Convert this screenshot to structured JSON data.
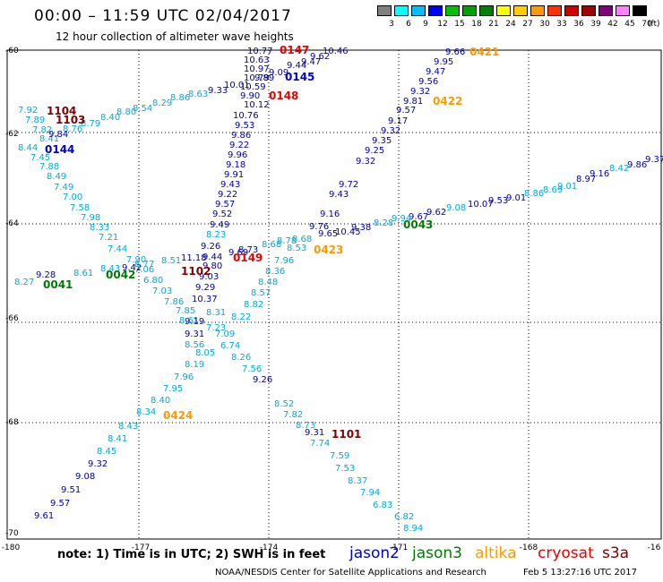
{
  "title": "00:00 – 11:59 UTC 02/04/2017",
  "subtitle": "12 hour collection of altimeter wave heights",
  "scale": {
    "labels": [
      "3",
      "6",
      "9",
      "12",
      "15",
      "18",
      "21",
      "24",
      "27",
      "30",
      "33",
      "36",
      "39",
      "42",
      "45",
      "70"
    ],
    "unit": "(ft)",
    "colors": [
      "#808080",
      "#00ffff",
      "#00bfff",
      "#0000ff",
      "#00c000",
      "#00a000",
      "#008000",
      "#ffff00",
      "#ffcc00",
      "#ff9900",
      "#ff3300",
      "#d00000",
      "#a00000",
      "#800080",
      "#ff80ff",
      "#000000"
    ]
  },
  "map": {
    "lon_ticks": [
      "-180",
      "-177",
      "-174",
      "-171",
      "-168",
      "-16"
    ],
    "lat_ticks": [
      "-60",
      "-62",
      "-64",
      "-66",
      "-68",
      "-70"
    ],
    "colors": {
      "jason2": "#0000cc",
      "jason3": "#007a00",
      "altika": "#ff9900",
      "cryosat": "#ee0000",
      "s3a": "#800000",
      "obs_light": "#00aadd",
      "obs_dark": "#0000aa"
    },
    "pass_labels": [
      {
        "text": "0147",
        "color": "cryosat"
      },
      {
        "text": "0145",
        "color": "jason2"
      },
      {
        "text": "0148",
        "color": "cryosat"
      },
      {
        "text": "0421",
        "color": "altika"
      },
      {
        "text": "0422",
        "color": "altika"
      },
      {
        "text": "1104",
        "color": "s3a"
      },
      {
        "text": "1103",
        "color": "s3a"
      },
      {
        "text": "0144",
        "color": "jason2"
      },
      {
        "text": "0043",
        "color": "jason3"
      },
      {
        "text": "0423",
        "color": "altika"
      },
      {
        "text": "0149",
        "color": "cryosat"
      },
      {
        "text": "0042",
        "color": "jason3"
      },
      {
        "text": "1102",
        "color": "s3a"
      },
      {
        "text": "0041",
        "color": "jason3"
      },
      {
        "text": "0424",
        "color": "altika"
      },
      {
        "text": "1101",
        "color": "s3a"
      }
    ],
    "observations": [
      {
        "t": "10.77",
        "c": "obs_dark"
      },
      {
        "t": "10.46",
        "c": "obs_dark"
      },
      {
        "t": "10.63",
        "c": "obs_dark"
      },
      {
        "t": "9.62",
        "c": "obs_dark"
      },
      {
        "t": "9.47",
        "c": "obs_dark"
      },
      {
        "t": "10.97",
        "c": "obs_dark"
      },
      {
        "t": "9.44",
        "c": "obs_dark"
      },
      {
        "t": "9.09",
        "c": "obs_dark"
      },
      {
        "t": "10.79",
        "c": "obs_dark"
      },
      {
        "t": "9.89",
        "c": "obs_dark"
      },
      {
        "t": "10.01",
        "c": "obs_dark"
      },
      {
        "t": "9.33",
        "c": "obs_dark"
      },
      {
        "t": "10.59",
        "c": "obs_dark"
      },
      {
        "t": "9.90",
        "c": "obs_dark"
      },
      {
        "t": "10.12",
        "c": "obs_dark"
      },
      {
        "t": "10.76",
        "c": "obs_dark"
      },
      {
        "t": "9.53",
        "c": "obs_dark"
      },
      {
        "t": "9.86",
        "c": "obs_dark"
      },
      {
        "t": "9.22",
        "c": "obs_dark"
      },
      {
        "t": "9.96",
        "c": "obs_dark"
      },
      {
        "t": "9.18",
        "c": "obs_dark"
      },
      {
        "t": "9.91",
        "c": "obs_dark"
      },
      {
        "t": "9.43",
        "c": "obs_dark"
      },
      {
        "t": "9.22",
        "c": "obs_dark"
      },
      {
        "t": "9.57",
        "c": "obs_dark"
      },
      {
        "t": "9.52",
        "c": "obs_dark"
      },
      {
        "t": "9.49",
        "c": "obs_dark"
      },
      {
        "t": "9.66",
        "c": "obs_dark"
      },
      {
        "t": "9.95",
        "c": "obs_dark"
      },
      {
        "t": "9.47",
        "c": "obs_dark"
      },
      {
        "t": "9.56",
        "c": "obs_dark"
      },
      {
        "t": "9.32",
        "c": "obs_dark"
      },
      {
        "t": "9.81",
        "c": "obs_dark"
      },
      {
        "t": "9.57",
        "c": "obs_dark"
      },
      {
        "t": "9.17",
        "c": "obs_dark"
      },
      {
        "t": "9.32",
        "c": "obs_dark"
      },
      {
        "t": "9.35",
        "c": "obs_dark"
      },
      {
        "t": "9.25",
        "c": "obs_dark"
      },
      {
        "t": "9.32",
        "c": "obs_dark"
      },
      {
        "t": "9.72",
        "c": "obs_dark"
      },
      {
        "t": "9.43",
        "c": "obs_dark"
      },
      {
        "t": "9.16",
        "c": "obs_dark"
      },
      {
        "t": "9.76",
        "c": "obs_dark"
      },
      {
        "t": "9.65",
        "c": "obs_dark"
      },
      {
        "t": "10.45",
        "c": "obs_dark"
      },
      {
        "t": "9.38",
        "c": "obs_dark"
      },
      {
        "t": "9.86",
        "c": "obs_dark"
      },
      {
        "t": "9.37",
        "c": "obs_dark"
      },
      {
        "t": "8.42",
        "c": "obs_light"
      },
      {
        "t": "9.16",
        "c": "obs_dark"
      },
      {
        "t": "8.97",
        "c": "obs_dark"
      },
      {
        "t": "9.01",
        "c": "obs_light"
      },
      {
        "t": "8.69",
        "c": "obs_light"
      },
      {
        "t": "8.86",
        "c": "obs_light"
      },
      {
        "t": "9.01",
        "c": "obs_dark"
      },
      {
        "t": "9.53",
        "c": "obs_dark"
      },
      {
        "t": "10.07",
        "c": "obs_dark"
      },
      {
        "t": "9.08",
        "c": "obs_light"
      },
      {
        "t": "9.62",
        "c": "obs_dark"
      },
      {
        "t": "9.67",
        "c": "obs_dark"
      },
      {
        "t": "9.94",
        "c": "obs_light"
      },
      {
        "t": "8.28",
        "c": "obs_light"
      },
      {
        "t": "7.92",
        "c": "obs_light"
      },
      {
        "t": "7.89",
        "c": "obs_light"
      },
      {
        "t": "7.82",
        "c": "obs_light"
      },
      {
        "t": "8.41",
        "c": "obs_light"
      },
      {
        "t": "8.44",
        "c": "obs_light"
      },
      {
        "t": "7.45",
        "c": "obs_light"
      },
      {
        "t": "7.88",
        "c": "obs_light"
      },
      {
        "t": "8.49",
        "c": "obs_light"
      },
      {
        "t": "7.49",
        "c": "obs_light"
      },
      {
        "t": "7.00",
        "c": "obs_light"
      },
      {
        "t": "7.58",
        "c": "obs_light"
      },
      {
        "t": "7.98",
        "c": "obs_light"
      },
      {
        "t": "8.33",
        "c": "obs_light"
      },
      {
        "t": "7.21",
        "c": "obs_light"
      },
      {
        "t": "7.44",
        "c": "obs_light"
      },
      {
        "t": "7.90",
        "c": "obs_light"
      },
      {
        "t": "7.06",
        "c": "obs_light"
      },
      {
        "t": "6.80",
        "c": "obs_light"
      },
      {
        "t": "7.03",
        "c": "obs_light"
      },
      {
        "t": "7.86",
        "c": "obs_light"
      },
      {
        "t": "7.85",
        "c": "obs_light"
      },
      {
        "t": "8.61",
        "c": "obs_light"
      },
      {
        "t": "8.76",
        "c": "obs_light"
      },
      {
        "t": "8.79",
        "c": "obs_light"
      },
      {
        "t": "8.40",
        "c": "obs_light"
      },
      {
        "t": "8.80",
        "c": "obs_light"
      },
      {
        "t": "8.54",
        "c": "obs_light"
      },
      {
        "t": "8.29",
        "c": "obs_light"
      },
      {
        "t": "8.86",
        "c": "obs_light"
      },
      {
        "t": "8.63",
        "c": "obs_light"
      },
      {
        "t": "9.84",
        "c": "obs_dark"
      },
      {
        "t": "8.27",
        "c": "obs_light"
      },
      {
        "t": "9.28",
        "c": "obs_dark"
      },
      {
        "t": "8.61",
        "c": "obs_light"
      },
      {
        "t": "8.43",
        "c": "obs_light"
      },
      {
        "t": "9.42",
        "c": "obs_dark"
      },
      {
        "t": "8.77",
        "c": "obs_light"
      },
      {
        "t": "8.51",
        "c": "obs_light"
      },
      {
        "t": "11.18",
        "c": "obs_dark"
      },
      {
        "t": "9.26",
        "c": "obs_dark"
      },
      {
        "t": "9.44",
        "c": "obs_dark"
      },
      {
        "t": "9.69",
        "c": "obs_dark"
      },
      {
        "t": "8.73",
        "c": "obs_dark"
      },
      {
        "t": "9.80",
        "c": "obs_dark"
      },
      {
        "t": "9.03",
        "c": "obs_dark"
      },
      {
        "t": "9.29",
        "c": "obs_dark"
      },
      {
        "t": "10.37",
        "c": "obs_dark"
      },
      {
        "t": "9.19",
        "c": "obs_dark"
      },
      {
        "t": "9.31",
        "c": "obs_dark"
      },
      {
        "t": "8.56",
        "c": "obs_light"
      },
      {
        "t": "8.23",
        "c": "obs_light"
      },
      {
        "t": "8.68",
        "c": "obs_light"
      },
      {
        "t": "8.78",
        "c": "obs_light"
      },
      {
        "t": "8.68",
        "c": "obs_light"
      },
      {
        "t": "8.53",
        "c": "obs_light"
      },
      {
        "t": "7.96",
        "c": "obs_light"
      },
      {
        "t": "8.36",
        "c": "obs_light"
      },
      {
        "t": "8.48",
        "c": "obs_light"
      },
      {
        "t": "8.57",
        "c": "obs_light"
      },
      {
        "t": "8.82",
        "c": "obs_light"
      },
      {
        "t": "8.22",
        "c": "obs_light"
      },
      {
        "t": "7.23",
        "c": "obs_light"
      },
      {
        "t": "7.09",
        "c": "obs_light"
      },
      {
        "t": "6.74",
        "c": "obs_light"
      },
      {
        "t": "8.26",
        "c": "obs_light"
      },
      {
        "t": "7.56",
        "c": "obs_light"
      },
      {
        "t": "9.26",
        "c": "obs_dark"
      },
      {
        "t": "8.52",
        "c": "obs_light"
      },
      {
        "t": "7.82",
        "c": "obs_light"
      },
      {
        "t": "8.73",
        "c": "obs_light"
      },
      {
        "t": "9.31",
        "c": "obs_dark"
      },
      {
        "t": "7.74",
        "c": "obs_light"
      },
      {
        "t": "7.59",
        "c": "obs_light"
      },
      {
        "t": "7.53",
        "c": "obs_light"
      },
      {
        "t": "8.37",
        "c": "obs_light"
      },
      {
        "t": "7.94",
        "c": "obs_light"
      },
      {
        "t": "6.83",
        "c": "obs_light"
      },
      {
        "t": "6.82",
        "c": "obs_light"
      },
      {
        "t": "8.94",
        "c": "obs_light"
      },
      {
        "t": "8.31",
        "c": "obs_light"
      },
      {
        "t": "8.05",
        "c": "obs_light"
      },
      {
        "t": "8.19",
        "c": "obs_light"
      },
      {
        "t": "7.96",
        "c": "obs_light"
      },
      {
        "t": "7.95",
        "c": "obs_light"
      },
      {
        "t": "8.40",
        "c": "obs_light"
      },
      {
        "t": "8.34",
        "c": "obs_light"
      },
      {
        "t": "8.43",
        "c": "obs_light"
      },
      {
        "t": "8.41",
        "c": "obs_light"
      },
      {
        "t": "8.45",
        "c": "obs_light"
      },
      {
        "t": "9.32",
        "c": "obs_dark"
      },
      {
        "t": "9.08",
        "c": "obs_dark"
      },
      {
        "t": "9.51",
        "c": "obs_dark"
      },
      {
        "t": "9.57",
        "c": "obs_dark"
      },
      {
        "t": "9.61",
        "c": "obs_dark"
      }
    ]
  },
  "note": "note: 1) Time is in UTC; 2) SWH is in feet",
  "satellites": [
    {
      "name": "jason2",
      "color": "#0000cc"
    },
    {
      "name": "jason3",
      "color": "#007a00"
    },
    {
      "name": "altika",
      "color": "#ff9900"
    },
    {
      "name": "cryosat",
      "color": "#ee0000"
    },
    {
      "name": "s3a",
      "color": "#800000"
    }
  ],
  "footer": "NOAA/NESDIS Center for Satellite Applications and Research",
  "footer_time": "Feb  5 13:27:16 UTC 2017"
}
